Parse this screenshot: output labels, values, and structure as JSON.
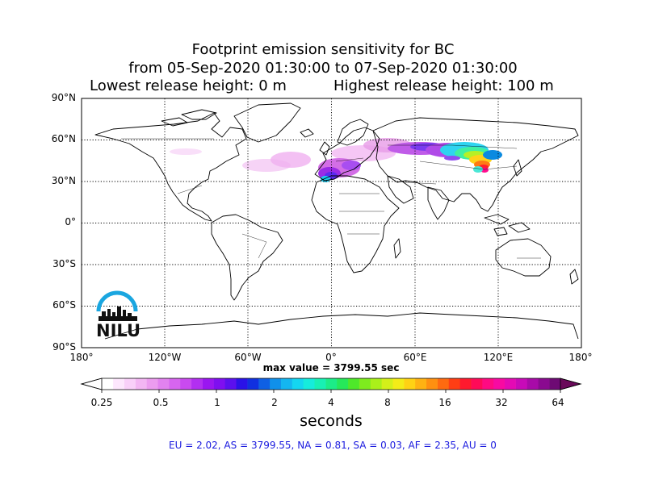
{
  "title": {
    "line1": "Footprint emission sensitivity for BC",
    "line2": "from 05-Sep-2020 01:30:00 to 07-Sep-2020 01:30:00",
    "lowest_release": "Lowest release height: 0 m",
    "highest_release": "Highest release height: 100 m"
  },
  "map": {
    "lat_labels": [
      "90°N",
      "60°N",
      "30°N",
      "0°",
      "30°S",
      "60°S",
      "90°S"
    ],
    "lon_labels": [
      "180°",
      "120°W",
      "60°W",
      "0°",
      "60°E",
      "120°E",
      "180°"
    ],
    "grid": "dotted",
    "land_color": "#ffffff",
    "coast_color": "#000000"
  },
  "max_value": "max value = 3799.55 sec",
  "colorbar": {
    "tick_labels": [
      "0.25",
      "0.5",
      "1",
      "2",
      "4",
      "8",
      "16",
      "32",
      "64"
    ],
    "units": "seconds",
    "scale": "log2"
  },
  "totals": "EU = 2.02,  AS = 3799.55,  NA = 0.81,  SA = 0.03,  AF = 2.35,  AU = 0",
  "logo": {
    "text": "NILU",
    "arc_color": "#1aa6e0"
  }
}
